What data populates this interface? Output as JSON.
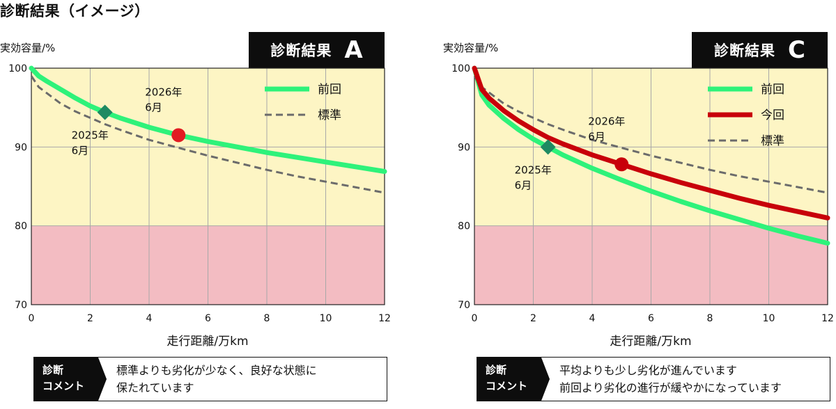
{
  "page_title": "診断結果（イメージ）",
  "chart_data": [
    {
      "type": "line",
      "result_label": "診断結果",
      "grade": "A",
      "ylabel": "実効容量/%",
      "xlabel": "走行距離/万km",
      "xlim": [
        0,
        12
      ],
      "ylim": [
        70,
        100
      ],
      "x_ticks": [
        "0",
        "2",
        "4",
        "6",
        "8",
        "10",
        "12"
      ],
      "y_ticks": [
        "70",
        "80",
        "90",
        "100"
      ],
      "grid": true,
      "zones": [
        {
          "from": 80,
          "to": 100,
          "color": "#fdf5c4"
        },
        {
          "from": 70,
          "to": 80,
          "color": "#f3bcc2"
        }
      ],
      "legend": {
        "placement": "top-right",
        "items": [
          {
            "name": "前回",
            "color": "#2ef27a",
            "style": "solid"
          },
          {
            "name": "標準",
            "color": "#6b6b6b",
            "style": "dashed"
          }
        ]
      },
      "series": [
        {
          "name": "前回",
          "color": "#2ef27a",
          "style": "solid",
          "x": [
            0,
            0.25,
            0.5,
            1,
            1.5,
            2,
            2.5,
            3,
            4,
            5,
            6,
            7,
            8,
            9,
            10,
            11,
            12
          ],
          "y": [
            100,
            99.0,
            98.4,
            97.3,
            96.2,
            95.2,
            94.4,
            93.7,
            92.5,
            91.5,
            90.7,
            90.0,
            89.3,
            88.7,
            88.1,
            87.5,
            86.9
          ]
        },
        {
          "name": "標準",
          "color": "#6b6b6b",
          "style": "dashed",
          "x": [
            0,
            0.25,
            0.5,
            1,
            1.5,
            2,
            2.5,
            3,
            4,
            5,
            6,
            7,
            8,
            9,
            10,
            11,
            12
          ],
          "y": [
            99.0,
            97.6,
            96.9,
            95.5,
            94.5,
            93.7,
            92.9,
            92.2,
            90.9,
            89.9,
            88.9,
            88.0,
            87.1,
            86.3,
            85.6,
            84.9,
            84.2
          ]
        }
      ],
      "markers": [
        {
          "shape": "diamond",
          "color": "#1e8a62",
          "x": 2.5,
          "y": 94.4,
          "label": [
            "2025年",
            "6月"
          ],
          "label_pos": "below"
        },
        {
          "shape": "circle",
          "color": "#e11b22",
          "x": 5.0,
          "y": 91.5,
          "label": [
            "2026年",
            "6月"
          ],
          "label_pos": "above"
        }
      ],
      "comment_label": [
        "診断",
        "コメント"
      ],
      "comment": [
        "標準よりも劣化が少なく、良好な状態に",
        "保たれています"
      ]
    },
    {
      "type": "line",
      "result_label": "診断結果",
      "grade": "C",
      "ylabel": "実効容量/%",
      "xlabel": "走行距離/万km",
      "xlim": [
        0,
        12
      ],
      "ylim": [
        70,
        100
      ],
      "x_ticks": [
        "0",
        "2",
        "4",
        "6",
        "8",
        "10",
        "12"
      ],
      "y_ticks": [
        "70",
        "80",
        "90",
        "100"
      ],
      "grid": true,
      "zones": [
        {
          "from": 80,
          "to": 100,
          "color": "#fdf5c4"
        },
        {
          "from": 70,
          "to": 80,
          "color": "#f3bcc2"
        }
      ],
      "legend": {
        "placement": "top-right",
        "items": [
          {
            "name": "前回",
            "color": "#2ef27a",
            "style": "solid"
          },
          {
            "name": "今回",
            "color": "#c8000a",
            "style": "solid"
          },
          {
            "name": "標準",
            "color": "#6b6b6b",
            "style": "dashed"
          }
        ]
      },
      "series": [
        {
          "name": "前回",
          "color": "#2ef27a",
          "style": "solid",
          "x": [
            0,
            0.25,
            0.5,
            1,
            1.5,
            2,
            2.5,
            3,
            4,
            5,
            6,
            7,
            8,
            9,
            10,
            11,
            12
          ],
          "y": [
            100,
            96.6,
            95.3,
            93.6,
            92.2,
            91.0,
            90.0,
            89.0,
            87.3,
            85.8,
            84.4,
            83.1,
            81.9,
            80.8,
            79.7,
            78.7,
            77.8
          ]
        },
        {
          "name": "標準",
          "color": "#6b6b6b",
          "style": "dashed",
          "x": [
            0,
            0.25,
            0.5,
            1,
            1.5,
            2,
            2.5,
            3,
            4,
            5,
            6,
            7,
            8,
            9,
            10,
            11,
            12
          ],
          "y": [
            99.0,
            97.6,
            96.9,
            95.5,
            94.5,
            93.7,
            92.9,
            92.2,
            90.9,
            89.9,
            88.9,
            88.0,
            87.1,
            86.3,
            85.6,
            84.9,
            84.2
          ]
        },
        {
          "name": "今回",
          "color": "#c8000a",
          "style": "solid",
          "x": [
            0,
            0.25,
            0.5,
            1,
            1.5,
            2,
            2.5,
            3,
            4,
            5,
            6,
            7,
            8,
            9,
            10,
            11,
            12
          ],
          "y": [
            100,
            97.3,
            96.2,
            94.6,
            93.3,
            92.2,
            91.2,
            90.4,
            89.0,
            87.8,
            86.6,
            85.5,
            84.5,
            83.5,
            82.6,
            81.8,
            81.0
          ]
        }
      ],
      "markers": [
        {
          "shape": "diamond",
          "color": "#1e8a62",
          "x": 2.5,
          "y": 90.0,
          "label": [
            "2025年",
            "6月"
          ],
          "label_pos": "below"
        },
        {
          "shape": "circle",
          "color": "#c8000a",
          "x": 5.0,
          "y": 87.8,
          "label": [
            "2026年",
            "6月"
          ],
          "label_pos": "above"
        }
      ],
      "comment_label": [
        "診断",
        "コメント"
      ],
      "comment": [
        "平均よりも少し劣化が進んでいます",
        "前回より劣化の進行が緩やかになっています"
      ]
    }
  ]
}
